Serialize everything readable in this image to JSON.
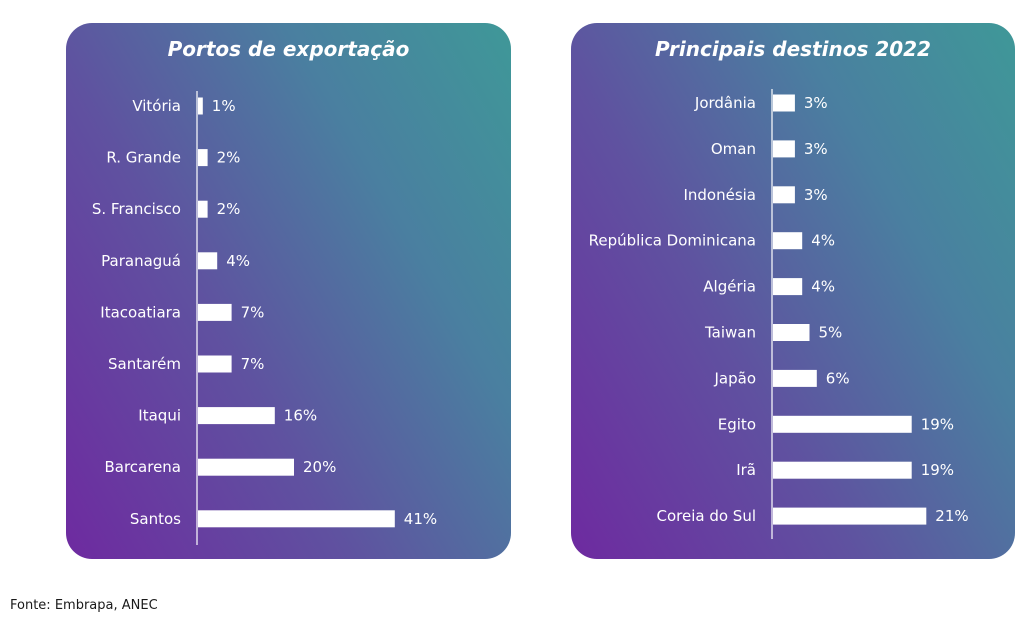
{
  "chart_data": [
    {
      "type": "bar",
      "orientation": "horizontal",
      "title": "Portos de exportação",
      "categories": [
        "Vitória",
        "R. Grande",
        "S. Francisco",
        "Paranaguá",
        "Itacoatiara",
        "Santarém",
        "Itaqui",
        "Barcarena",
        "Santos"
      ],
      "values": [
        1,
        2,
        2,
        4,
        7,
        7,
        16,
        20,
        41
      ],
      "value_labels": [
        "1%",
        "2%",
        "2%",
        "4%",
        "7%",
        "7%",
        "16%",
        "20%",
        "41%"
      ],
      "unit": "%",
      "bar_color": "#ffffff",
      "background_gradient": [
        "#6e2aa0",
        "#3f9898"
      ]
    },
    {
      "type": "bar",
      "orientation": "horizontal",
      "title": "Principais destinos 2022",
      "categories": [
        "Jordânia",
        "Oman",
        "Indonésia",
        "República Dominicana",
        "Algéria",
        "Taiwan",
        "Japão",
        "Egito",
        "Irã",
        "Coreia do Sul"
      ],
      "values": [
        3,
        3,
        3,
        4,
        4,
        5,
        6,
        19,
        19,
        21
      ],
      "value_labels": [
        "3%",
        "3%",
        "3%",
        "4%",
        "4%",
        "5%",
        "6%",
        "19%",
        "19%",
        "21%"
      ],
      "unit": "%",
      "bar_color": "#ffffff",
      "background_gradient": [
        "#6e2aa0",
        "#3f9898"
      ]
    }
  ],
  "source": "Fonte: Embrapa, ANEC"
}
